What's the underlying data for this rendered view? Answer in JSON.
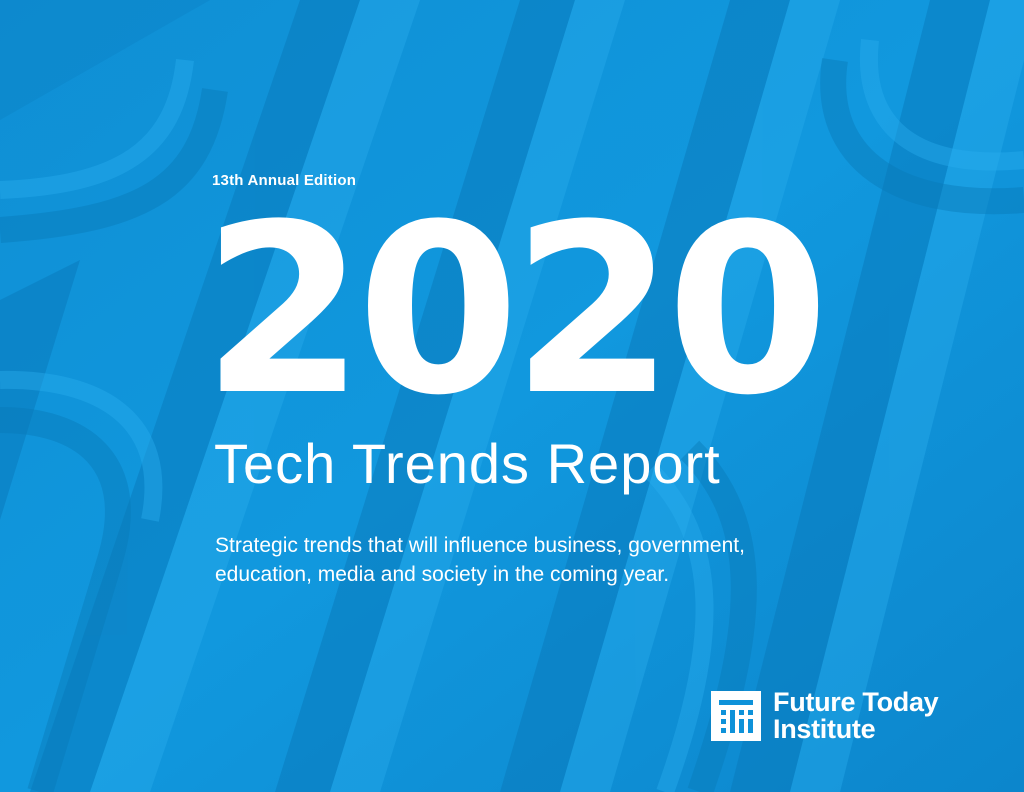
{
  "cover": {
    "edition": "13th Annual Edition",
    "year": "2020",
    "title": "Tech Trends Report",
    "subtitle_line1": "Strategic trends that will influence business, government,",
    "subtitle_line2": "education, media and society in the coming year."
  },
  "logo": {
    "icon": "future-today-institute-logo-icon",
    "line1": "Future Today",
    "line2": "Institute"
  },
  "colors": {
    "background": "#0e92d9",
    "band_light": "#1a9fe3",
    "band_shadow": "#0a79ba",
    "text": "#ffffff"
  }
}
